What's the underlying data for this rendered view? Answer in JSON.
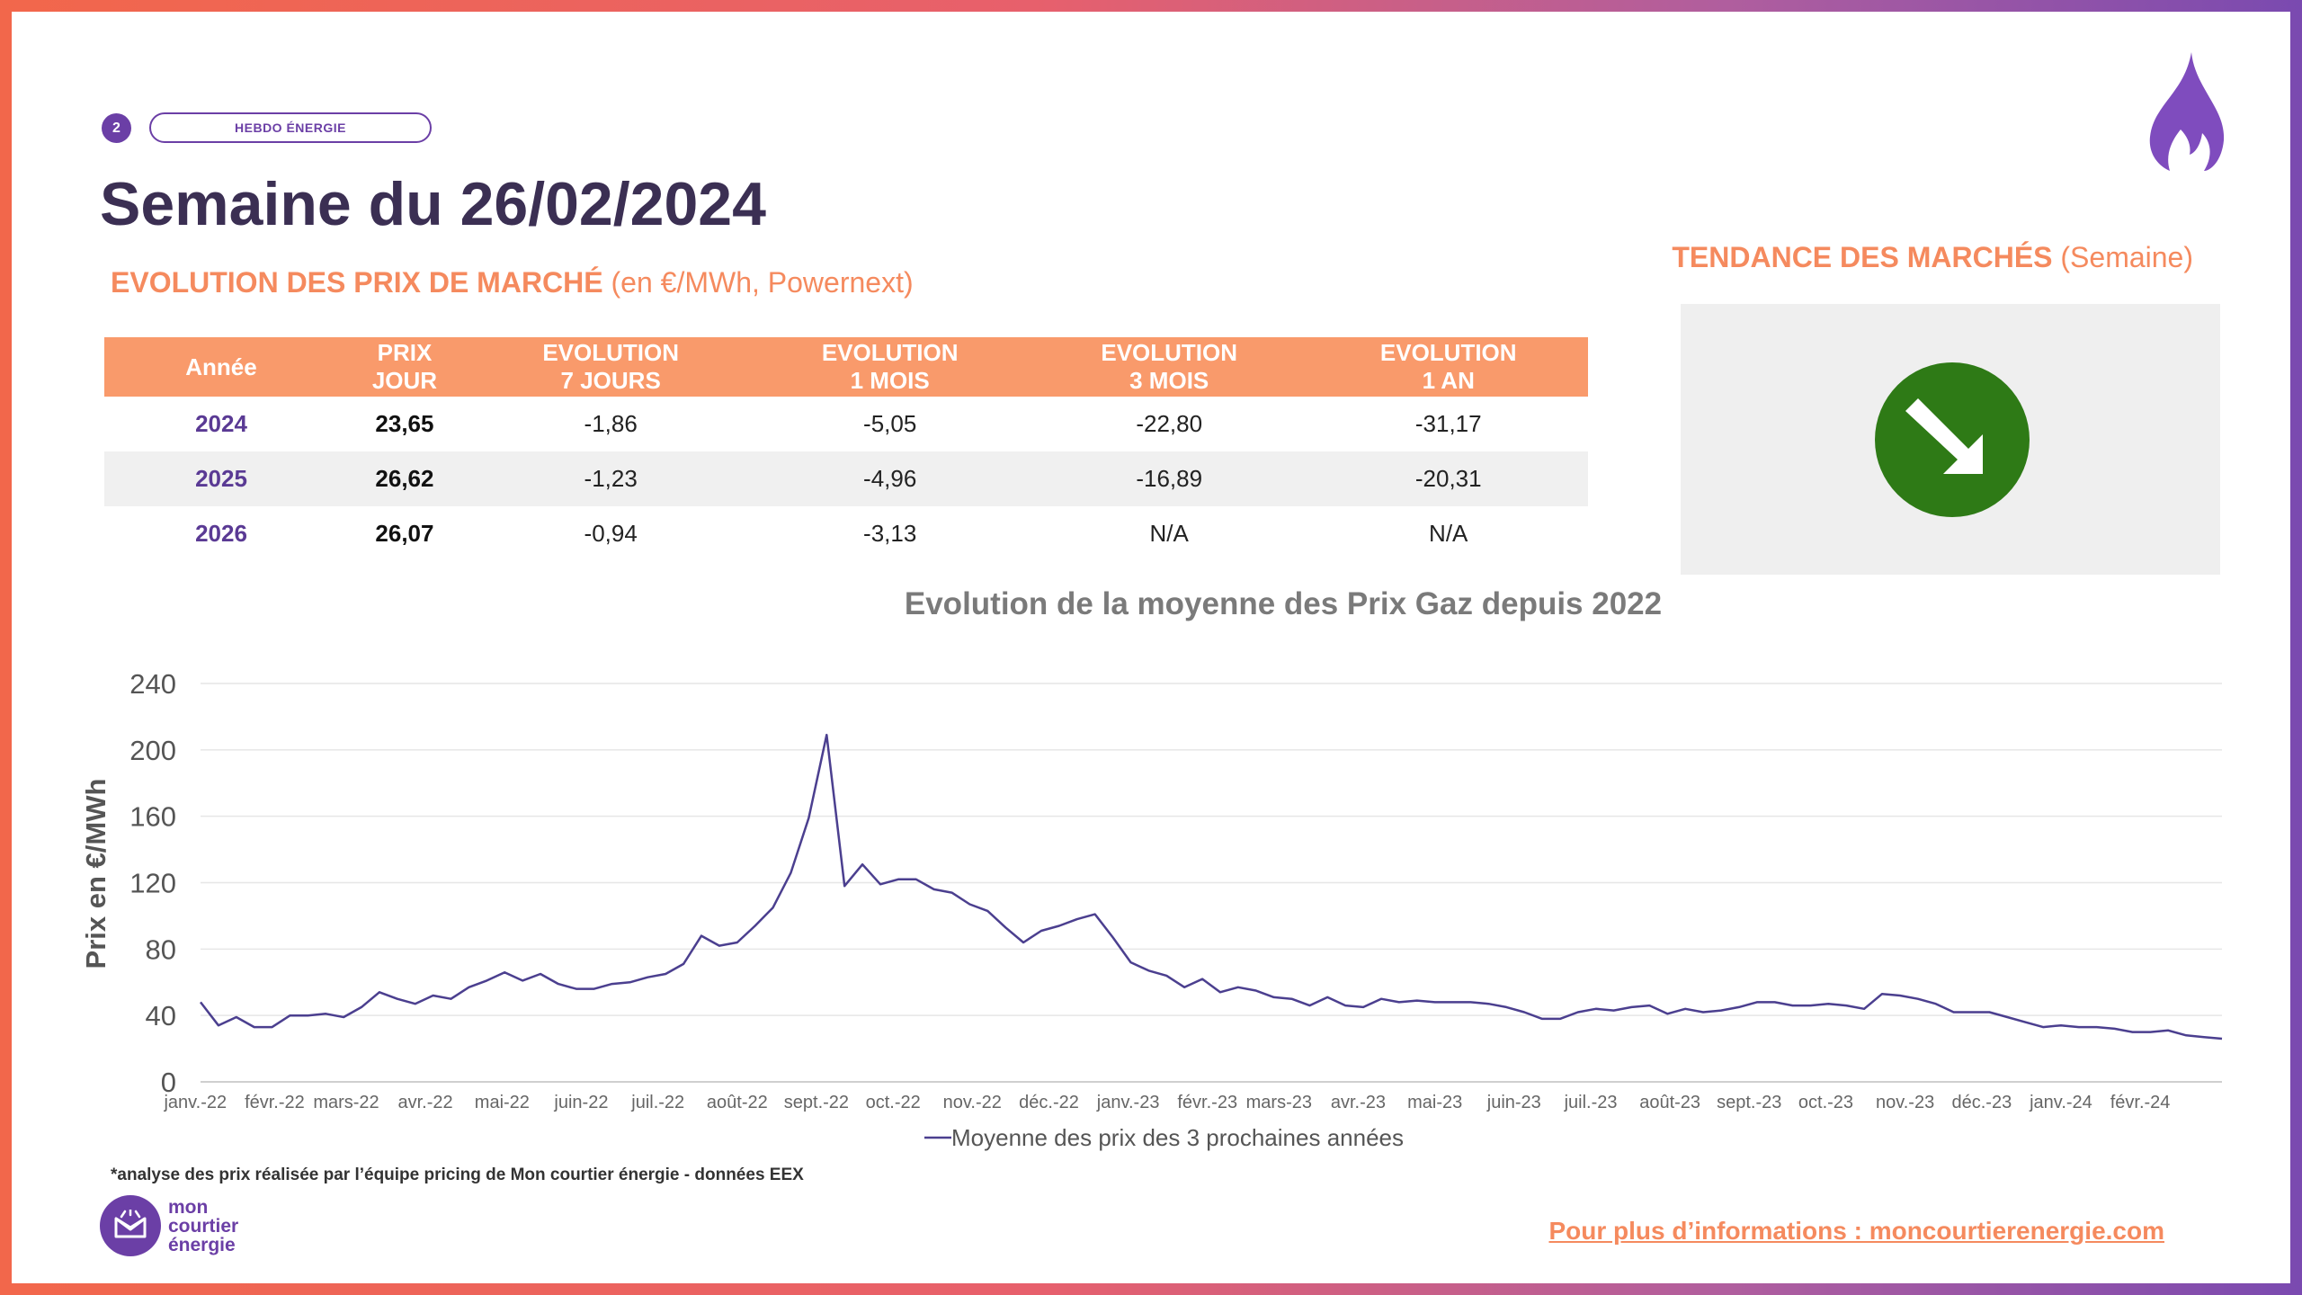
{
  "header": {
    "page_number": "2",
    "tag": "HEBDO ÉNERGIE",
    "title": "Semaine du 26/02/2024"
  },
  "market_section": {
    "title_bold": "EVOLUTION DES PRIX DE MARCHÉ",
    "title_light": " (en €/MWh, Powernext)"
  },
  "table": {
    "headers": [
      [
        "Année"
      ],
      [
        "PRIX",
        "JOUR"
      ],
      [
        "EVOLUTION",
        "7 JOURS"
      ],
      [
        "EVOLUTION",
        "1 MOIS"
      ],
      [
        "EVOLUTION",
        "3 MOIS"
      ],
      [
        "EVOLUTION",
        "1 AN"
      ]
    ],
    "rows": [
      [
        "2024",
        "23,65",
        "-1,86",
        "-5,05",
        "-22,80",
        "-31,17"
      ],
      [
        "2025",
        "26,62",
        "-1,23",
        "-4,96",
        "-16,89",
        "-20,31"
      ],
      [
        "2026",
        "26,07",
        "-0,94",
        "-3,13",
        "N/A",
        "N/A"
      ]
    ]
  },
  "trend": {
    "title_bold": "TENDANCE DES MARCHÉS",
    "title_light": " (Semaine)",
    "direction": "down",
    "arrow_icon": "down-right-arrow-icon",
    "color": "#2e7a16"
  },
  "chart_data": {
    "type": "line",
    "title": "Evolution de la moyenne des Prix Gaz depuis 2022",
    "ylabel": "Prix en €/MWh",
    "xlabel": "",
    "ylim": [
      0,
      240
    ],
    "yticks": [
      0,
      40,
      80,
      120,
      160,
      200,
      240
    ],
    "grid": true,
    "legend_position": "bottom",
    "color": "#4b3f8f",
    "x_tick_labels": [
      "janv.-22",
      "févr.-22",
      "mars-22",
      "avr.-22",
      "mai-22",
      "juin-22",
      "juil.-22",
      "août-22",
      "sept.-22",
      "oct.-22",
      "nov.-22",
      "déc.-22",
      "janv.-23",
      "févr.-23",
      "mars-23",
      "avr.-23",
      "mai-23",
      "juin-23",
      "juil.-23",
      "août-23",
      "sept.-23",
      "oct.-23",
      "nov.-23",
      "déc.-23",
      "janv.-24",
      "févr.-24"
    ],
    "series": [
      {
        "name": "Moyenne des prix des 3 prochaines années",
        "x_start": "2022-01-03",
        "step_weeks": 1,
        "values": [
          48,
          34,
          39,
          33,
          33,
          40,
          40,
          41,
          39,
          45,
          54,
          50,
          47,
          52,
          50,
          57,
          61,
          66,
          61,
          65,
          59,
          56,
          56,
          59,
          60,
          63,
          65,
          71,
          88,
          82,
          84,
          94,
          105,
          126,
          159,
          209,
          118,
          131,
          119,
          122,
          122,
          116,
          114,
          107,
          103,
          93,
          84,
          91,
          94,
          98,
          101,
          87,
          72,
          67,
          64,
          57,
          62,
          54,
          57,
          55,
          51,
          50,
          46,
          51,
          46,
          45,
          50,
          48,
          49,
          48,
          48,
          48,
          47,
          45,
          42,
          38,
          38,
          42,
          44,
          43,
          45,
          46,
          41,
          44,
          42,
          43,
          45,
          48,
          48,
          46,
          46,
          47,
          46,
          44,
          53,
          52,
          50,
          47,
          42,
          42,
          42,
          39,
          36,
          33,
          34,
          33,
          33,
          32,
          30,
          30,
          31,
          28,
          27,
          26
        ]
      }
    ]
  },
  "footer": {
    "footnote": "*analyse des prix réalisée par l’équipe pricing de Mon courtier énergie -  données EEX",
    "logo_lines": [
      "mon",
      "courtier",
      "énergie"
    ],
    "more_info": "Pour plus d’informations : moncourtierenergie.com"
  }
}
